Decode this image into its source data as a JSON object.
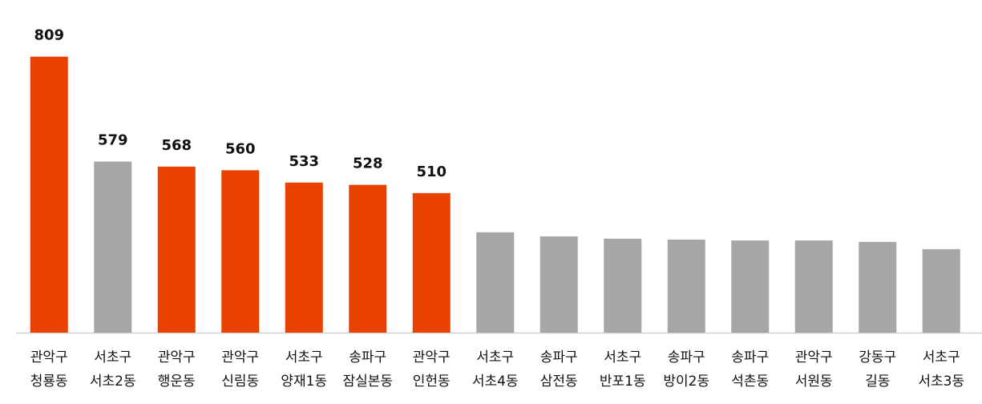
{
  "chart_data": {
    "type": "bar",
    "categories": [
      [
        "관악구",
        "청룡동"
      ],
      [
        "서초구",
        "서초2동"
      ],
      [
        "관악구",
        "행운동"
      ],
      [
        "관악구",
        "신림동"
      ],
      [
        "서초구",
        "양재1동"
      ],
      [
        "송파구",
        "잠실본동"
      ],
      [
        "관악구",
        "인헌동"
      ],
      [
        "서초구",
        "서초4동"
      ],
      [
        "송파구",
        "삼전동"
      ],
      [
        "서초구",
        "반포1동"
      ],
      [
        "송파구",
        "방이2동"
      ],
      [
        "송파구",
        "석촌동"
      ],
      [
        "관악구",
        "서원동"
      ],
      [
        "강동구",
        "길동"
      ],
      [
        "서초구",
        "서초3동"
      ]
    ],
    "values": [
      809,
      579,
      568,
      560,
      533,
      528,
      510,
      424,
      415,
      410,
      408,
      406,
      406,
      403,
      387
    ],
    "value_labels": [
      "809",
      "579",
      "568",
      "560",
      "533",
      "528",
      "510",
      null,
      null,
      null,
      null,
      null,
      null,
      null,
      null
    ],
    "colors": [
      "#e84100",
      "#a6a6a6",
      "#e84100",
      "#e84100",
      "#e84100",
      "#e84100",
      "#e84100",
      "#a6a6a6",
      "#a6a6a6",
      "#a6a6a6",
      "#a6a6a6",
      "#a6a6a6",
      "#a6a6a6",
      "#a6a6a6",
      "#a6a6a6"
    ],
    "ylim": [
      204,
      870
    ]
  }
}
